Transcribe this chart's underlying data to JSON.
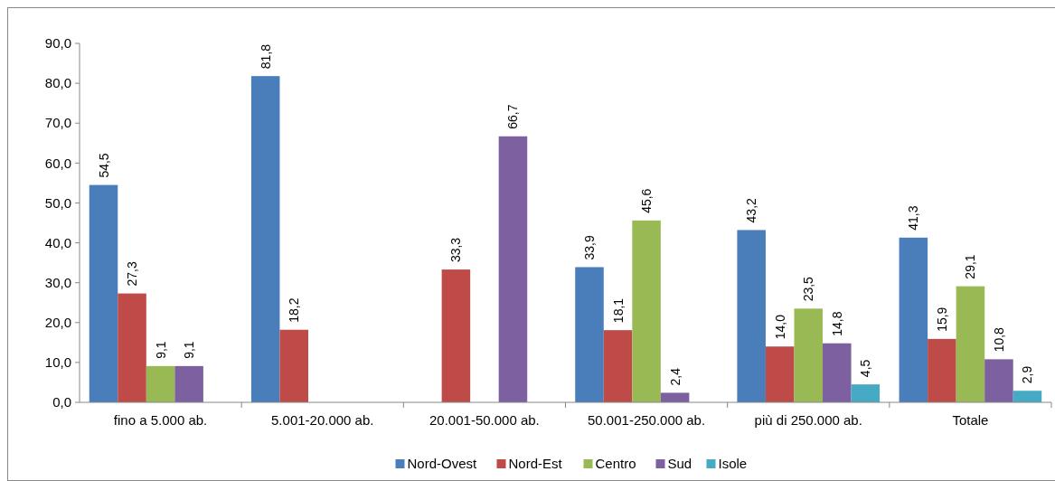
{
  "chart_data": {
    "type": "bar",
    "categories": [
      "fino a 5.000 ab.",
      "5.001-20.000 ab.",
      "20.001-50.000 ab.",
      "50.001-250.000 ab.",
      "più di 250.000 ab.",
      "Totale"
    ],
    "series": [
      {
        "name": "Nord-Ovest",
        "color": "#4a7ebb",
        "values": [
          54.5,
          81.8,
          null,
          33.9,
          43.2,
          41.3
        ],
        "value_labels": [
          "54,5",
          "81,8",
          null,
          "33,9",
          "43,2",
          "41,3"
        ]
      },
      {
        "name": "Nord-Est",
        "color": "#be4b48",
        "values": [
          27.3,
          18.2,
          33.3,
          18.1,
          14.0,
          15.9
        ],
        "value_labels": [
          "27,3",
          "18,2",
          "33,3",
          "18,1",
          "14,0",
          "15,9"
        ]
      },
      {
        "name": "Centro",
        "color": "#98b954",
        "values": [
          9.1,
          null,
          null,
          45.6,
          23.5,
          29.1
        ],
        "value_labels": [
          "9,1",
          null,
          null,
          "45,6",
          "23,5",
          "29,1"
        ]
      },
      {
        "name": "Sud",
        "color": "#7d60a0",
        "values": [
          9.1,
          null,
          66.7,
          2.4,
          14.8,
          10.8
        ],
        "value_labels": [
          "9,1",
          null,
          "66,7",
          "2,4",
          "14,8",
          "10,8"
        ]
      },
      {
        "name": "Isole",
        "color": "#46aac5",
        "values": [
          null,
          null,
          null,
          null,
          4.5,
          2.9
        ],
        "value_labels": [
          null,
          null,
          null,
          null,
          "4,5",
          "2,9"
        ]
      }
    ],
    "ylim": [
      0,
      90
    ],
    "yticks": [
      {
        "value": 0,
        "label": "0,0"
      },
      {
        "value": 10,
        "label": "10,0"
      },
      {
        "value": 20,
        "label": "20,0"
      },
      {
        "value": 30,
        "label": "30,0"
      },
      {
        "value": 40,
        "label": "40,0"
      },
      {
        "value": 50,
        "label": "50,0"
      },
      {
        "value": 60,
        "label": "60,0"
      },
      {
        "value": 70,
        "label": "70,0"
      },
      {
        "value": 80,
        "label": "80,0"
      },
      {
        "value": 90,
        "label": "90,0"
      }
    ],
    "grid": false,
    "legend": "bottom"
  }
}
